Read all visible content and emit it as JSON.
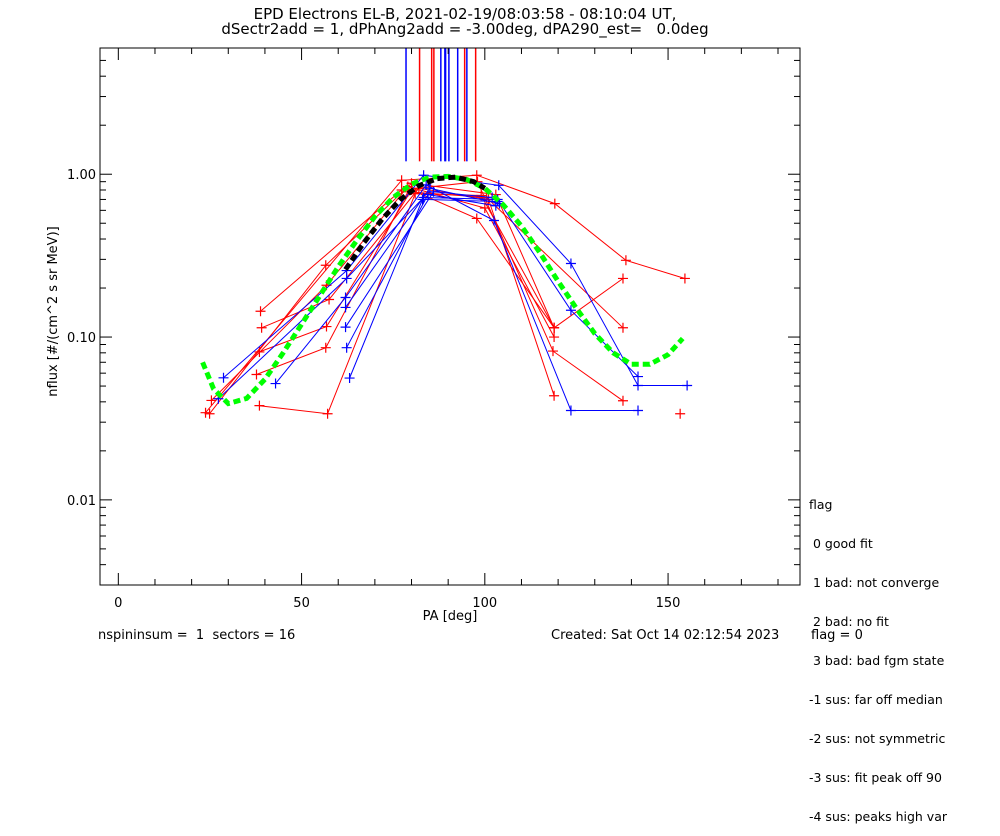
{
  "chart_data": {
    "type": "line",
    "title": "EPD Electrons EL-B, 2021-02-19/08:03:58 - 08:10:04 UT,",
    "subtitle": "dSectr2add = 1, dPhAng2add = -3.00deg, dPA290_est=   0.0deg",
    "xlabel": "PA [deg]",
    "ylabel": "nflux [#/(cm^2 s sr MeV)]",
    "xlim": [
      -5,
      186
    ],
    "ylim": [
      0.003,
      5.96
    ],
    "yscale": "log",
    "xticks": [
      0,
      50,
      100,
      150
    ],
    "xtick_labels": [
      "0",
      "50",
      "100",
      "150"
    ],
    "yticks": [
      1.0,
      0.1,
      0.01
    ],
    "ytick_labels": [
      "1.00",
      "0.10",
      "0.01"
    ],
    "grid": false,
    "series": [
      {
        "name": "red-1",
        "color": "#ff0000",
        "x": [
          23.8,
          77.3,
          97.8,
          119.1,
          138.5,
          154.6
        ],
        "y": [
          0.0343,
          0.918,
          0.986,
          0.66,
          0.296,
          0.229
        ]
      },
      {
        "name": "red-2",
        "color": "#ff0000",
        "x": [
          24.9,
          56.6,
          80.0,
          103.0,
          118.9,
          137.7
        ],
        "y": [
          0.0338,
          0.276,
          0.88,
          0.75,
          0.114,
          0.229
        ]
      },
      {
        "name": "red-3",
        "color": "#ff0000",
        "x": [
          25.4,
          56.8,
          79.0,
          100.0,
          118.9
        ],
        "y": [
          0.0408,
          0.208,
          0.84,
          0.62,
          0.1
        ]
      },
      {
        "name": "red-4",
        "color": "#ff0000",
        "x": [
          38.8,
          77.3,
          98.0,
          118.6,
          137.7
        ],
        "y": [
          0.144,
          0.8,
          0.9,
          0.082,
          0.0406
        ]
      },
      {
        "name": "red-5",
        "color": "#ff0000",
        "x": [
          39.1,
          57.5,
          82.0,
          101.0,
          118.9
        ],
        "y": [
          0.114,
          0.17,
          0.82,
          0.7,
          0.0436
        ]
      },
      {
        "name": "red-6",
        "color": "#ff0000",
        "x": [
          38.5,
          56.8,
          80.0,
          97.8,
          118.9
        ],
        "y": [
          0.081,
          0.116,
          0.8,
          0.535,
          0.114
        ]
      },
      {
        "name": "red-7",
        "color": "#ff0000",
        "x": [
          37.7,
          56.6,
          79.0,
          100.5,
          137.7
        ],
        "y": [
          0.0589,
          0.086,
          0.78,
          0.72,
          0.114
        ]
      },
      {
        "name": "red-8",
        "color": "#ff0000",
        "x": [
          38.5,
          57.1,
          81.0,
          99.0,
          118.9
        ],
        "y": [
          0.0379,
          0.0338,
          0.76,
          0.74,
          0.114
        ]
      },
      {
        "name": "red-9",
        "color": "#ff0000",
        "x": [
          153.3
        ],
        "y": [
          0.0338
        ]
      },
      {
        "name": "blue-1",
        "color": "#0000ff",
        "x": [
          28.7,
          62.3,
          83.3,
          103.8,
          123.5,
          141.8,
          155.2
        ],
        "y": [
          0.0562,
          0.256,
          0.986,
          0.855,
          0.283,
          0.0504,
          0.0504
        ]
      },
      {
        "name": "blue-2",
        "color": "#0000ff",
        "x": [
          27.3,
          62.3,
          83.3,
          103.5,
          123.5,
          141.8
        ],
        "y": [
          0.0418,
          0.229,
          0.72,
          0.7,
          0.146,
          0.0572
        ]
      },
      {
        "name": "blue-3",
        "color": "#0000ff",
        "x": [
          42.9,
          62.0,
          84.0,
          102.5,
          123.5,
          141.8
        ],
        "y": [
          0.0518,
          0.175,
          0.86,
          0.52,
          0.0354,
          0.0354
        ]
      },
      {
        "name": "blue-4",
        "color": "#0000ff",
        "x": [
          62.0,
          85.0,
          104.0
        ],
        "y": [
          0.152,
          0.82,
          0.66
        ]
      },
      {
        "name": "blue-5",
        "color": "#0000ff",
        "x": [
          62.0,
          86.0,
          102.0
        ],
        "y": [
          0.115,
          0.78,
          0.72
        ]
      },
      {
        "name": "blue-6",
        "color": "#0000ff",
        "x": [
          62.3,
          84.5,
          103.0
        ],
        "y": [
          0.086,
          0.75,
          0.64
        ]
      },
      {
        "name": "blue-7",
        "color": "#0000ff",
        "x": [
          63.1,
          83.0,
          103.5
        ],
        "y": [
          0.056,
          0.7,
          0.68
        ]
      }
    ],
    "fits": [
      {
        "name": "fit-green",
        "color": "#00ff00",
        "style": "dashed-thick",
        "x": [
          23,
          26,
          30,
          35,
          40,
          45,
          50,
          55,
          60,
          65,
          70,
          75,
          80,
          85,
          90,
          95,
          100,
          105,
          110,
          115,
          120,
          125,
          130,
          135,
          140,
          145,
          150,
          154
        ],
        "y": [
          0.07,
          0.048,
          0.039,
          0.042,
          0.055,
          0.08,
          0.12,
          0.18,
          0.27,
          0.39,
          0.55,
          0.72,
          0.87,
          0.96,
          0.97,
          0.93,
          0.82,
          0.65,
          0.48,
          0.33,
          0.22,
          0.15,
          0.105,
          0.08,
          0.068,
          0.068,
          0.078,
          0.098
        ]
      },
      {
        "name": "fit-black",
        "color": "#000000",
        "style": "dashed-thick",
        "x": [
          62,
          67,
          72,
          77,
          82,
          87,
          92,
          97,
          100
        ],
        "y": [
          0.26,
          0.38,
          0.53,
          0.7,
          0.85,
          0.94,
          0.96,
          0.9,
          0.82
        ]
      }
    ],
    "vertical_lines": [
      {
        "x": 78.5,
        "color": "#0000ff"
      },
      {
        "x": 82.2,
        "color": "#ff0000"
      },
      {
        "x": 85.5,
        "color": "#ff0000"
      },
      {
        "x": 86.1,
        "color": "#ff0000"
      },
      {
        "x": 88.0,
        "color": "#0000ff"
      },
      {
        "x": 89.1,
        "color": "#0000ff"
      },
      {
        "x": 89.3,
        "color": "#0000ff"
      },
      {
        "x": 90.2,
        "color": "#0000ff"
      },
      {
        "x": 92.6,
        "color": "#0000ff"
      },
      {
        "x": 94.5,
        "color": "#ff0000"
      },
      {
        "x": 95.1,
        "color": "#0000ff"
      },
      {
        "x": 97.5,
        "color": "#ff0000"
      }
    ],
    "vertical_line_range": [
      1.2,
      5.96
    ]
  },
  "legend": {
    "title": "flag",
    "items": [
      " 0 good fit",
      " 1 bad: not converge",
      " 2 bad: no fit",
      " 3 bad: bad fgm state",
      "-1 sus: far off median",
      "-2 sus: not symmetric",
      "-3 sus: fit peak off 90",
      "-4 sus: peaks high var"
    ]
  },
  "footer": {
    "left": "nspininsum =  1  sectors = 16",
    "created": "Created: Sat Oct 14 02:12:54 2023",
    "flag": "flag = 0"
  }
}
